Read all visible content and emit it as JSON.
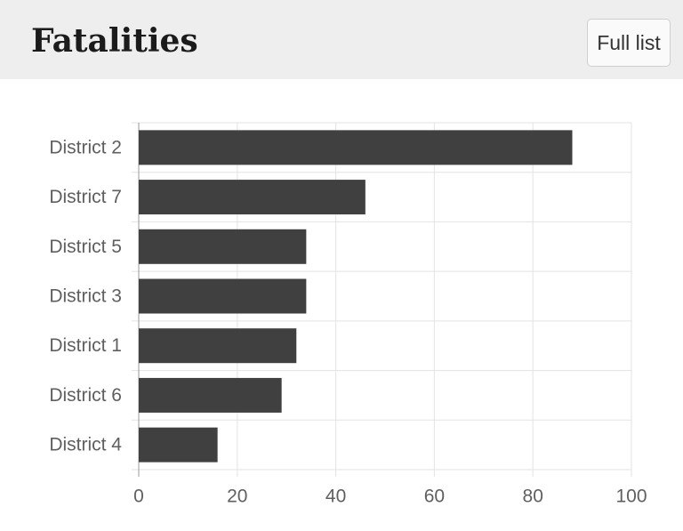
{
  "header": {
    "title": "Fatalities",
    "full_list_label": "Full list"
  },
  "colors": {
    "bar": "#404040",
    "grid": "#e3e3e3",
    "axis": "#999999",
    "header_bg": "#eeeeee"
  },
  "chart_data": {
    "type": "bar",
    "orientation": "horizontal",
    "categories": [
      "District 2",
      "District 7",
      "District 5",
      "District 3",
      "District 1",
      "District 6",
      "District 4"
    ],
    "values": [
      88,
      46,
      34,
      34,
      32,
      29,
      16
    ],
    "xlim": [
      0,
      100
    ],
    "xticks": [
      0,
      20,
      40,
      60,
      80,
      100
    ],
    "grid": true,
    "legend": "none"
  }
}
